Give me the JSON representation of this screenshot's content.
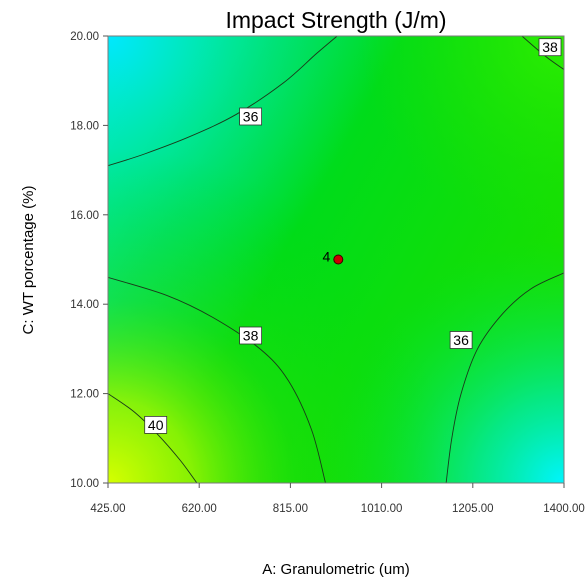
{
  "chart_data": {
    "type": "contour",
    "title": "Impact Strength (J/m)",
    "xlabel": "A: Granulometric (um)",
    "ylabel": "C: WT porcentage (%)",
    "xlim": [
      425,
      1400
    ],
    "ylim": [
      10,
      20
    ],
    "x_ticks": [
      "425.00",
      "620.00",
      "815.00",
      "1010.00",
      "1205.00",
      "1400.00"
    ],
    "y_ticks": [
      "10.00",
      "12.00",
      "14.00",
      "16.00",
      "18.00",
      "20.00"
    ],
    "grid": false,
    "legend": "none",
    "colormap": [
      "#00ffff",
      "#00ee44",
      "#00dd00",
      "#ccff00"
    ],
    "contour_lines": [
      {
        "level": "36",
        "label_x": 730,
        "label_y": 18.2,
        "points": [
          [
            425,
            17.1
          ],
          [
            500,
            17.35
          ],
          [
            600,
            17.75
          ],
          [
            700,
            18.25
          ],
          [
            800,
            18.95
          ],
          [
            870,
            19.6
          ],
          [
            915,
            20.0
          ]
        ]
      },
      {
        "level": "38",
        "label_x": 730,
        "label_y": 13.3,
        "points": [
          [
            425,
            14.6
          ],
          [
            550,
            14.2
          ],
          [
            650,
            13.7
          ],
          [
            750,
            13.0
          ],
          [
            810,
            12.3
          ],
          [
            860,
            11.2
          ],
          [
            890,
            10.0
          ]
        ]
      },
      {
        "level": "40",
        "label_x": 527,
        "label_y": 11.3,
        "points": [
          [
            425,
            12.0
          ],
          [
            480,
            11.6
          ],
          [
            530,
            11.1
          ],
          [
            580,
            10.5
          ],
          [
            615,
            10.0
          ]
        ]
      },
      {
        "level": "36",
        "label_x": 1180,
        "label_y": 13.2,
        "points": [
          [
            1148,
            10.0
          ],
          [
            1160,
            11.0
          ],
          [
            1180,
            12.0
          ],
          [
            1215,
            13.0
          ],
          [
            1270,
            13.8
          ],
          [
            1330,
            14.35
          ],
          [
            1400,
            14.7
          ]
        ]
      },
      {
        "level": "38",
        "label_x": 1370,
        "label_y": 19.75,
        "points": [
          [
            1310,
            20.0
          ],
          [
            1360,
            19.55
          ],
          [
            1400,
            19.25
          ]
        ]
      }
    ],
    "points": [
      {
        "x": 917.5,
        "y": 15.0,
        "label": "4",
        "color": "#cc0000"
      }
    ]
  }
}
